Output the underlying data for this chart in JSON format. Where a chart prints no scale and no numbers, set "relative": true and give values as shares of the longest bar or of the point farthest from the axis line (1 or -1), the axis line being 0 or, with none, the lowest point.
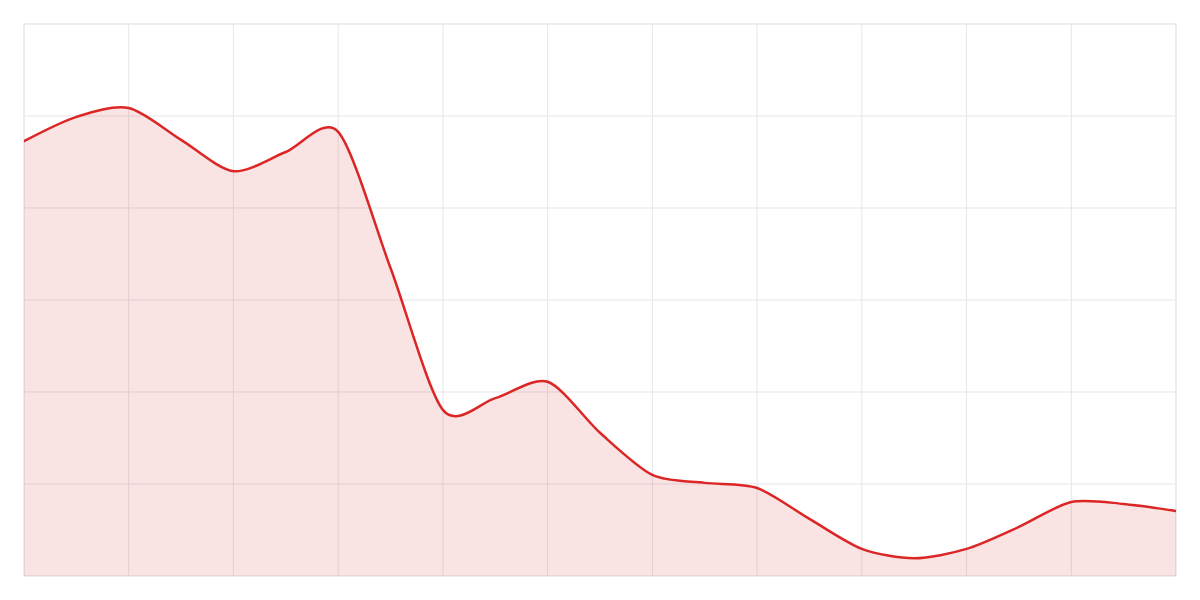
{
  "chart_data": {
    "type": "area",
    "categories": [
      null,
      null,
      null,
      null,
      null,
      null,
      null,
      null,
      null,
      null,
      null,
      null,
      null,
      null,
      null,
      null,
      null,
      null,
      null,
      null,
      null,
      null,
      null
    ],
    "values": [
      0.929,
      0.981,
      1.0,
      0.932,
      0.865,
      0.906,
      0.949,
      0.658,
      0.355,
      0.38,
      0.415,
      0.306,
      0.216,
      0.199,
      0.188,
      0.122,
      0.058,
      0.038,
      0.058,
      0.105,
      0.158,
      0.154,
      0.139
    ],
    "color": "#dc2626",
    "relative": true,
    "grid": true
  }
}
